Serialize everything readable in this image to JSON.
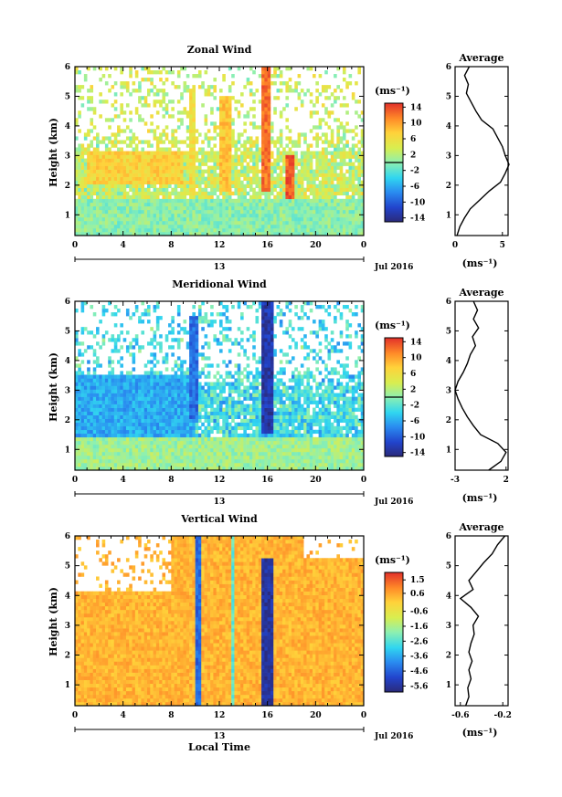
{
  "figure": {
    "xlabel": "Local Time",
    "date_label": "Jul 2016",
    "day_label": "13",
    "ylabel": "Height (km)"
  },
  "chart_data": [
    {
      "type": "heatmap",
      "title": "Zonal Wind",
      "ylabel": "Height (km)",
      "x_ticks": [
        "0",
        "4",
        "8",
        "12",
        "16",
        "20",
        "0"
      ],
      "y_ticks": [
        "1",
        "2",
        "3",
        "4",
        "5",
        "6"
      ],
      "xlim": [
        0,
        24
      ],
      "ylim": [
        0.3,
        6
      ],
      "colorbar": {
        "unit": "(ms⁻¹)",
        "range": [
          -15,
          15
        ],
        "ticks": [
          "14",
          "10",
          "6",
          "2",
          "-2",
          "-6",
          "-10",
          "-14"
        ],
        "tick_values": [
          14,
          10,
          6,
          2,
          -2,
          -6,
          -10,
          -14
        ],
        "zero_line": 2
      },
      "features": [
        {
          "desc": "positive band",
          "x": [
            1,
            9
          ],
          "y": [
            2,
            3.2
          ],
          "value": 7
        },
        {
          "desc": "streak",
          "x": [
            9.4,
            10
          ],
          "y": [
            1.8,
            5.2
          ],
          "value": 6
        },
        {
          "desc": "streak",
          "x": [
            12,
            13
          ],
          "y": [
            1.8,
            5
          ],
          "value": 8
        },
        {
          "desc": "streak",
          "x": [
            15.5,
            16.3
          ],
          "y": [
            1.8,
            6
          ],
          "value": 12
        },
        {
          "desc": "streak",
          "x": [
            17.5,
            18.3
          ],
          "y": [
            1.5,
            3
          ],
          "value": 13
        },
        {
          "desc": "low level",
          "x": [
            0,
            24
          ],
          "y": [
            0.3,
            1.6
          ],
          "value": 0
        }
      ],
      "average": {
        "title": "Average",
        "xlabel": "(ms⁻¹)",
        "x_ticks": [
          "0",
          "5"
        ],
        "xlim": [
          0,
          5.6
        ],
        "height": [
          0.3,
          0.6,
          0.9,
          1.2,
          1.5,
          1.8,
          2.1,
          2.4,
          2.7,
          3.0,
          3.3,
          3.6,
          3.9,
          4.2,
          4.5,
          4.8,
          5.1,
          5.4,
          5.7,
          6.0
        ],
        "value": [
          0.2,
          0.5,
          1.0,
          1.6,
          2.6,
          3.6,
          4.8,
          5.3,
          5.7,
          5.3,
          5.0,
          4.5,
          4.0,
          2.8,
          2.2,
          1.7,
          1.2,
          1.4,
          1.0,
          1.5
        ]
      }
    },
    {
      "type": "heatmap",
      "title": "Meridional Wind",
      "ylabel": "Height (km)",
      "x_ticks": [
        "0",
        "4",
        "8",
        "12",
        "16",
        "20",
        "0"
      ],
      "y_ticks": [
        "1",
        "2",
        "3",
        "4",
        "5",
        "6"
      ],
      "xlim": [
        0,
        24
      ],
      "ylim": [
        0.3,
        6
      ],
      "colorbar": {
        "unit": "(ms⁻¹)",
        "range": [
          -15,
          15
        ],
        "ticks": [
          "14",
          "10",
          "6",
          "2",
          "-2",
          "-6",
          "-10",
          "-14"
        ],
        "tick_values": [
          14,
          10,
          6,
          2,
          -2,
          -6,
          -10,
          -14
        ],
        "zero_line": 2
      },
      "features": [
        {
          "desc": "negative band",
          "x": [
            0,
            10
          ],
          "y": [
            1.4,
            3.5
          ],
          "value": -6
        },
        {
          "desc": "streak",
          "x": [
            9.6,
            10.2
          ],
          "y": [
            2,
            5.5
          ],
          "value": -9
        },
        {
          "desc": "streak",
          "x": [
            15.6,
            16.4
          ],
          "y": [
            1.5,
            6
          ],
          "value": -13
        },
        {
          "desc": "low level",
          "x": [
            0,
            24
          ],
          "y": [
            0.3,
            1.4
          ],
          "value": 1
        }
      ],
      "average": {
        "title": "Average",
        "xlabel": "(ms⁻¹)",
        "x_ticks": [
          "-3",
          "2"
        ],
        "xlim": [
          -3,
          2.2
        ],
        "height": [
          0.3,
          0.6,
          0.9,
          1.2,
          1.5,
          1.8,
          2.1,
          2.4,
          2.7,
          3.0,
          3.3,
          3.6,
          3.9,
          4.2,
          4.5,
          4.8,
          5.1,
          5.4,
          5.7,
          6.0
        ],
        "value": [
          0.3,
          1.5,
          2.0,
          1.2,
          -0.5,
          -1.2,
          -1.8,
          -2.3,
          -2.7,
          -3.0,
          -2.7,
          -2.2,
          -1.8,
          -1.5,
          -1.0,
          -1.3,
          -0.7,
          -1.2,
          -0.8,
          -1.2
        ]
      }
    },
    {
      "type": "heatmap",
      "title": "Vertical Wind",
      "ylabel": "Height (km)",
      "xlabel": "Local Time",
      "x_ticks": [
        "0",
        "4",
        "8",
        "12",
        "16",
        "20",
        "0"
      ],
      "y_ticks": [
        "1",
        "2",
        "3",
        "4",
        "5",
        "6"
      ],
      "xlim": [
        0,
        24
      ],
      "ylim": [
        0.3,
        6
      ],
      "colorbar": {
        "unit": "(ms⁻¹)",
        "range": [
          -6,
          2
        ],
        "ticks": [
          "1.5",
          "0.6",
          "-0.6",
          "-1.6",
          "-2.6",
          "-3.6",
          "-4.6",
          "-5.6"
        ],
        "tick_values": [
          1.5,
          0.6,
          -0.6,
          -1.6,
          -2.6,
          -3.6,
          -4.6,
          -5.6
        ]
      },
      "features": [
        {
          "desc": "background",
          "x": [
            0,
            24
          ],
          "y": [
            0.3,
            6
          ],
          "value": 0.4
        },
        {
          "desc": "streak",
          "x": [
            10,
            10.6
          ],
          "y": [
            0.3,
            6
          ],
          "value": -4.5
        },
        {
          "desc": "streak",
          "x": [
            12.9,
            13.3
          ],
          "y": [
            0.3,
            6
          ],
          "value": -2.5
        },
        {
          "desc": "streak",
          "x": [
            15.6,
            16.4
          ],
          "y": [
            0.3,
            5.3
          ],
          "value": -5.6
        }
      ],
      "average": {
        "title": "Average",
        "xlabel": "(ms⁻¹)",
        "x_ticks": [
          "-0.6",
          "-0.2"
        ],
        "xlim": [
          -0.65,
          -0.15
        ],
        "height": [
          0.3,
          0.6,
          0.9,
          1.2,
          1.5,
          1.8,
          2.1,
          2.4,
          2.7,
          3.0,
          3.3,
          3.6,
          3.9,
          4.2,
          4.5,
          4.8,
          5.1,
          5.4,
          5.7,
          6.0
        ],
        "value": [
          -0.55,
          -0.52,
          -0.53,
          -0.5,
          -0.52,
          -0.49,
          -0.52,
          -0.5,
          -0.47,
          -0.48,
          -0.43,
          -0.5,
          -0.6,
          -0.48,
          -0.52,
          -0.45,
          -0.38,
          -0.3,
          -0.25,
          -0.18
        ]
      }
    }
  ]
}
